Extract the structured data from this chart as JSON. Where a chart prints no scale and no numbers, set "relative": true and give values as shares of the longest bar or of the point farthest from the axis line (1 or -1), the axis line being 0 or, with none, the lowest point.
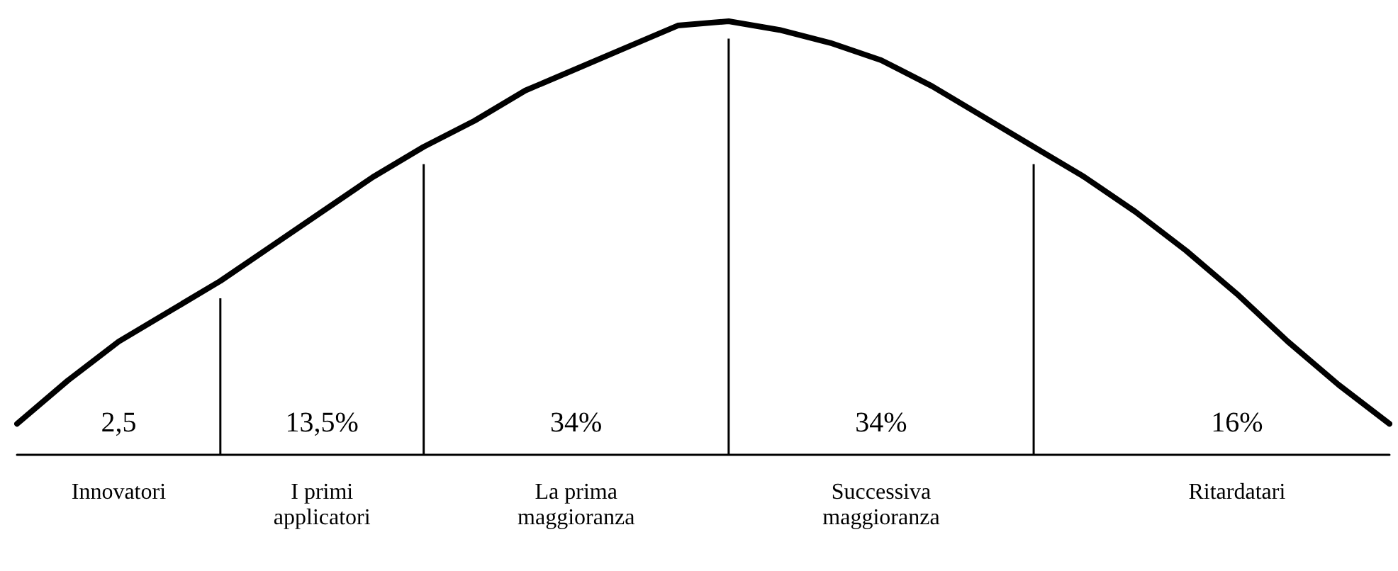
{
  "chart_data": {
    "type": "line",
    "relative": true,
    "tick_labels": false,
    "grid": false,
    "marker": "none",
    "line_style": "solid",
    "categories": [
      null,
      null,
      null,
      null,
      null,
      null,
      null,
      null,
      null,
      null,
      null,
      null,
      null,
      null,
      null,
      null,
      null,
      null,
      null,
      null,
      null,
      null,
      null,
      null,
      null,
      null,
      null,
      null
    ],
    "series": [
      {
        "color": "#000000",
        "values": [
          0.07,
          0.17,
          0.26,
          0.33,
          0.4,
          0.48,
          0.56,
          0.64,
          0.71,
          0.77,
          0.84,
          0.89,
          0.94,
          0.99,
          1.0,
          0.98,
          0.95,
          0.91,
          0.85,
          0.78,
          0.71,
          0.64,
          0.56,
          0.47,
          0.37,
          0.26,
          0.16,
          0.07
        ]
      }
    ],
    "annotations": [
      "2,5",
      "13,5%",
      "34%",
      "34%",
      "16%",
      "Innovatori",
      "I primi\napplicatori",
      "La prima\nmaggioranza",
      "Successiva\nmaggioranza",
      "Ritardatari"
    ]
  }
}
